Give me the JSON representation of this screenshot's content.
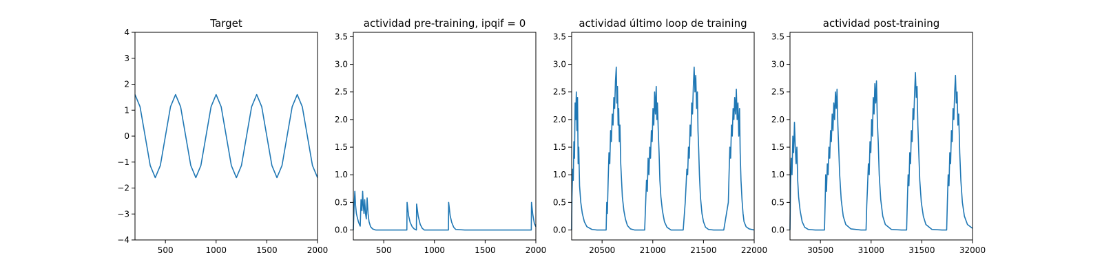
{
  "figure": {
    "background": "#ffffff",
    "line_color": "#1f77b4"
  },
  "chart_data": [
    {
      "type": "line",
      "title": "Target",
      "xlim": [
        200,
        2000
      ],
      "ylim": [
        -4,
        4
      ],
      "xticks": [
        500,
        1000,
        1500,
        2000
      ],
      "yticks": [
        -4,
        -3,
        -2,
        -1,
        0,
        1,
        2,
        3,
        4
      ],
      "grid": false,
      "series": [
        {
          "x": [
            200,
            250,
            300,
            350,
            400,
            450,
            500,
            550,
            600,
            650,
            700,
            750,
            800,
            850,
            900,
            950,
            1000,
            1050,
            1100,
            1150,
            1200,
            1250,
            1300,
            1350,
            1400,
            1450,
            1500,
            1550,
            1600,
            1650,
            1700,
            1750,
            1800,
            1850,
            1900,
            1950,
            2000
          ],
          "y": [
            1.6,
            1.13,
            0.0,
            -1.13,
            -1.6,
            -1.13,
            0.0,
            1.13,
            1.6,
            1.13,
            0.0,
            -1.13,
            -1.6,
            -1.13,
            0.0,
            1.13,
            1.6,
            1.13,
            0.0,
            -1.13,
            -1.6,
            -1.13,
            0.0,
            1.13,
            1.6,
            1.13,
            0.0,
            -1.13,
            -1.6,
            -1.13,
            0.0,
            1.13,
            1.6,
            1.13,
            0.0,
            -1.13,
            -1.6
          ]
        }
      ]
    },
    {
      "type": "line",
      "title": "actividad pre-training, ipqif = 0",
      "xlim": [
        200,
        2000
      ],
      "ylim": [
        -0.18,
        3.58
      ],
      "xticks": [
        500,
        1000,
        1500,
        2000
      ],
      "yticks": [
        0.0,
        0.5,
        1.0,
        1.5,
        2.0,
        2.5,
        3.0,
        3.5
      ],
      "grid": false,
      "series": [
        {
          "x": [
            200,
            208,
            215,
            222,
            230,
            240,
            250,
            260,
            268,
            276,
            285,
            292,
            298,
            305,
            312,
            320,
            328,
            336,
            345,
            355,
            370,
            390,
            420,
            500,
            600,
            700,
            728,
            730,
            745,
            760,
            780,
            800,
            822,
            824,
            840,
            860,
            880,
            900,
            1000,
            1100,
            1138,
            1140,
            1155,
            1170,
            1190,
            1210,
            1300,
            1500,
            1700,
            1900,
            1955,
            1957,
            1970,
            1985,
            2000
          ],
          "y": [
            0.0,
            0.45,
            0.7,
            0.45,
            0.3,
            0.22,
            0.15,
            0.1,
            0.07,
            0.55,
            0.35,
            0.7,
            0.45,
            0.3,
            0.55,
            0.3,
            0.2,
            0.58,
            0.3,
            0.15,
            0.06,
            0.02,
            0.0,
            0.0,
            0.0,
            0.0,
            0.0,
            0.5,
            0.26,
            0.14,
            0.06,
            0.02,
            0.0,
            0.47,
            0.25,
            0.1,
            0.03,
            0.0,
            0.0,
            0.0,
            0.0,
            0.5,
            0.26,
            0.14,
            0.05,
            0.01,
            0.0,
            0.0,
            0.0,
            0.0,
            0.0,
            0.5,
            0.28,
            0.12,
            0.06
          ]
        }
      ]
    },
    {
      "type": "line",
      "title": "actividad último loop de training",
      "xlim": [
        20200,
        22000
      ],
      "ylim": [
        -0.18,
        3.58
      ],
      "xticks": [
        20500,
        21000,
        21500,
        22000
      ],
      "yticks": [
        0.0,
        0.5,
        1.0,
        1.5,
        2.0,
        2.5,
        3.0,
        3.5
      ],
      "grid": false,
      "series": [
        {
          "x": [
            20200,
            20203,
            20210,
            20216,
            20222,
            20228,
            20234,
            20240,
            20246,
            20252,
            20258,
            20264,
            20270,
            20278,
            20290,
            20305,
            20325,
            20350,
            20400,
            20450,
            20500,
            20540,
            20546,
            20552,
            20560,
            20568,
            20576,
            20584,
            20592,
            20600,
            20608,
            20616,
            20624,
            20632,
            20640,
            20646,
            20652,
            20658,
            20664,
            20670,
            20676,
            20684,
            20692,
            20700,
            20715,
            20730,
            20750,
            20780,
            20820,
            20880,
            20920,
            20930,
            20938,
            20946,
            20954,
            20962,
            20970,
            20978,
            20986,
            20994,
            21002,
            21010,
            21018,
            21026,
            21034,
            21040,
            21046,
            21054,
            21062,
            21070,
            21080,
            21095,
            21115,
            21140,
            21180,
            21250,
            21300,
            21320,
            21328,
            21336,
            21344,
            21352,
            21360,
            21368,
            21376,
            21384,
            21392,
            21400,
            21408,
            21416,
            21424,
            21432,
            21440,
            21446,
            21452,
            21460,
            21470,
            21485,
            21500,
            21520,
            21550,
            21600,
            21700,
            21745,
            21752,
            21760,
            21768,
            21776,
            21784,
            21792,
            21800,
            21808,
            21816,
            21824,
            21832,
            21840,
            21848,
            21856,
            21862,
            21870,
            21880,
            21890,
            21900,
            21920,
            21950,
            22000
          ],
          "y": [
            0.0,
            0.6,
            1.1,
            0.9,
            1.6,
            1.3,
            2.3,
            2.0,
            2.5,
            1.8,
            2.4,
            1.2,
            1.5,
            0.8,
            0.5,
            0.3,
            0.15,
            0.06,
            0.01,
            0.0,
            0.0,
            0.0,
            0.5,
            0.3,
            0.9,
            1.4,
            1.2,
            1.8,
            1.6,
            2.1,
            1.9,
            2.4,
            2.2,
            2.7,
            2.95,
            2.3,
            2.6,
            1.9,
            2.2,
            1.6,
            1.9,
            1.2,
            0.9,
            0.6,
            0.35,
            0.2,
            0.08,
            0.02,
            0.0,
            0.0,
            0.0,
            0.5,
            0.9,
            0.7,
            1.3,
            1.0,
            1.5,
            1.3,
            1.8,
            1.6,
            2.2,
            1.9,
            2.5,
            2.1,
            2.6,
            2.0,
            2.3,
            1.8,
            1.4,
            0.9,
            0.6,
            0.35,
            0.15,
            0.05,
            0.0,
            0.0,
            0.0,
            0.5,
            0.8,
            1.1,
            1.0,
            1.5,
            1.3,
            1.9,
            1.7,
            2.3,
            2.1,
            2.6,
            2.95,
            2.5,
            2.8,
            2.2,
            2.5,
            1.8,
            1.5,
            1.0,
            0.6,
            0.3,
            0.15,
            0.05,
            0.01,
            0.0,
            0.0,
            0.5,
            1.0,
            1.5,
            1.3,
            1.9,
            1.7,
            2.2,
            2.0,
            2.4,
            2.1,
            2.55,
            2.0,
            2.3,
            1.7,
            2.2,
            1.4,
            0.9,
            0.55,
            0.3,
            0.15,
            0.06,
            0.02,
            0.0
          ]
        }
      ]
    },
    {
      "type": "line",
      "title": "actividad post-training",
      "xlim": [
        30200,
        32000
      ],
      "ylim": [
        -0.18,
        3.58
      ],
      "xticks": [
        30500,
        31000,
        31500,
        32000
      ],
      "yticks": [
        0.0,
        0.5,
        1.0,
        1.5,
        2.0,
        2.5,
        3.0,
        3.5
      ],
      "grid": false,
      "series": [
        {
          "x": [
            30200,
            30205,
            30212,
            30220,
            30228,
            30236,
            30244,
            30252,
            30260,
            30268,
            30276,
            30285,
            30300,
            30320,
            30345,
            30380,
            30450,
            30500,
            30540,
            30546,
            30552,
            30560,
            30568,
            30576,
            30584,
            30592,
            30600,
            30608,
            30616,
            30624,
            30632,
            30640,
            30648,
            30656,
            30664,
            30672,
            30680,
            30690,
            30705,
            30725,
            30750,
            30800,
            30900,
            30950,
            30957,
            30965,
            30973,
            30981,
            30989,
            30997,
            31005,
            31013,
            31021,
            31029,
            31037,
            31045,
            31053,
            31061,
            31070,
            31080,
            31095,
            31115,
            31140,
            31200,
            31300,
            31350,
            31357,
            31365,
            31373,
            31381,
            31389,
            31397,
            31405,
            31413,
            31421,
            31429,
            31437,
            31445,
            31453,
            31461,
            31470,
            31480,
            31495,
            31515,
            31540,
            31600,
            31700,
            31745,
            31752,
            31760,
            31768,
            31776,
            31784,
            31792,
            31800,
            31808,
            31816,
            31824,
            31832,
            31840,
            31848,
            31856,
            31864,
            31874,
            31885,
            31900,
            31920,
            31950,
            32000
          ],
          "y": [
            0.0,
            0.8,
            1.3,
            1.0,
            1.7,
            1.4,
            1.95,
            1.5,
            1.2,
            1.5,
            0.9,
            0.6,
            0.35,
            0.15,
            0.05,
            0.01,
            0.0,
            0.0,
            0.0,
            0.45,
            1.0,
            0.7,
            1.2,
            1.0,
            1.5,
            1.3,
            1.8,
            1.6,
            2.1,
            1.8,
            2.3,
            2.0,
            2.5,
            2.2,
            2.55,
            1.9,
            1.5,
            1.0,
            0.55,
            0.25,
            0.1,
            0.02,
            0.0,
            0.0,
            0.45,
            0.8,
            1.2,
            1.0,
            1.6,
            1.4,
            2.0,
            1.7,
            2.4,
            2.1,
            2.65,
            2.3,
            2.7,
            2.0,
            1.6,
            1.0,
            0.55,
            0.25,
            0.1,
            0.01,
            0.0,
            0.0,
            0.5,
            1.0,
            0.8,
            1.4,
            1.2,
            1.8,
            1.6,
            2.2,
            2.0,
            2.5,
            2.85,
            2.4,
            2.6,
            1.9,
            1.4,
            0.9,
            0.5,
            0.25,
            0.1,
            0.01,
            0.0,
            0.0,
            0.5,
            1.0,
            0.8,
            1.4,
            1.2,
            1.8,
            1.6,
            2.2,
            2.0,
            2.5,
            2.8,
            2.3,
            2.5,
            1.9,
            2.1,
            1.4,
            0.9,
            0.5,
            0.25,
            0.1,
            0.03
          ]
        }
      ]
    }
  ]
}
